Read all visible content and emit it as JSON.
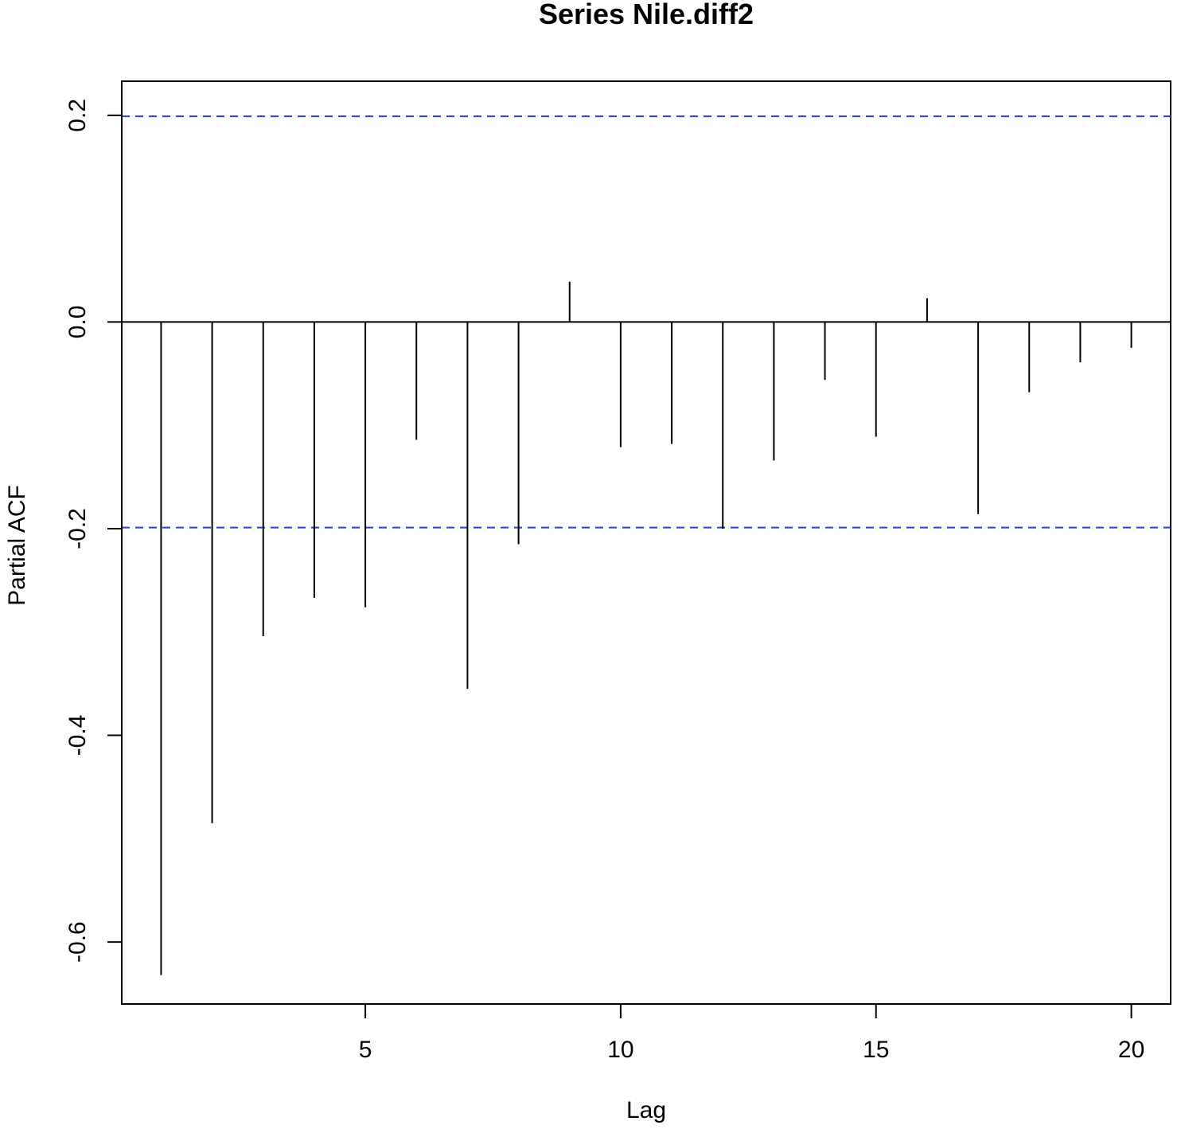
{
  "chart_data": {
    "type": "bar",
    "title": "Series  Nile.diff2",
    "xlabel": "Lag",
    "ylabel": "Partial ACF",
    "xlim": [
      0.23,
      20.77
    ],
    "ylim": [
      -0.66,
      0.233
    ],
    "x_ticks": [
      5,
      10,
      15,
      20
    ],
    "x_tick_labels": [
      "5",
      "10",
      "15",
      "20"
    ],
    "y_ticks": [
      -0.6,
      -0.4,
      -0.2,
      0.0,
      0.2
    ],
    "y_tick_labels": [
      "-0.6",
      "-0.4",
      "-0.2",
      "0.0",
      "0.2"
    ],
    "lags": [
      1,
      2,
      3,
      4,
      5,
      6,
      7,
      8,
      9,
      10,
      11,
      12,
      13,
      14,
      15,
      16,
      17,
      18,
      19,
      20
    ],
    "values": [
      -0.632,
      -0.485,
      -0.304,
      -0.267,
      -0.276,
      -0.114,
      -0.355,
      -0.215,
      0.039,
      -0.121,
      -0.118,
      -0.2,
      -0.134,
      -0.056,
      -0.111,
      0.023,
      -0.186,
      -0.068,
      -0.039,
      -0.025
    ],
    "confidence_limits": [
      0.199,
      -0.199
    ],
    "confidence_color": "#2a3bdc",
    "bar_color": "#000000",
    "grid": false,
    "legend": "none"
  }
}
